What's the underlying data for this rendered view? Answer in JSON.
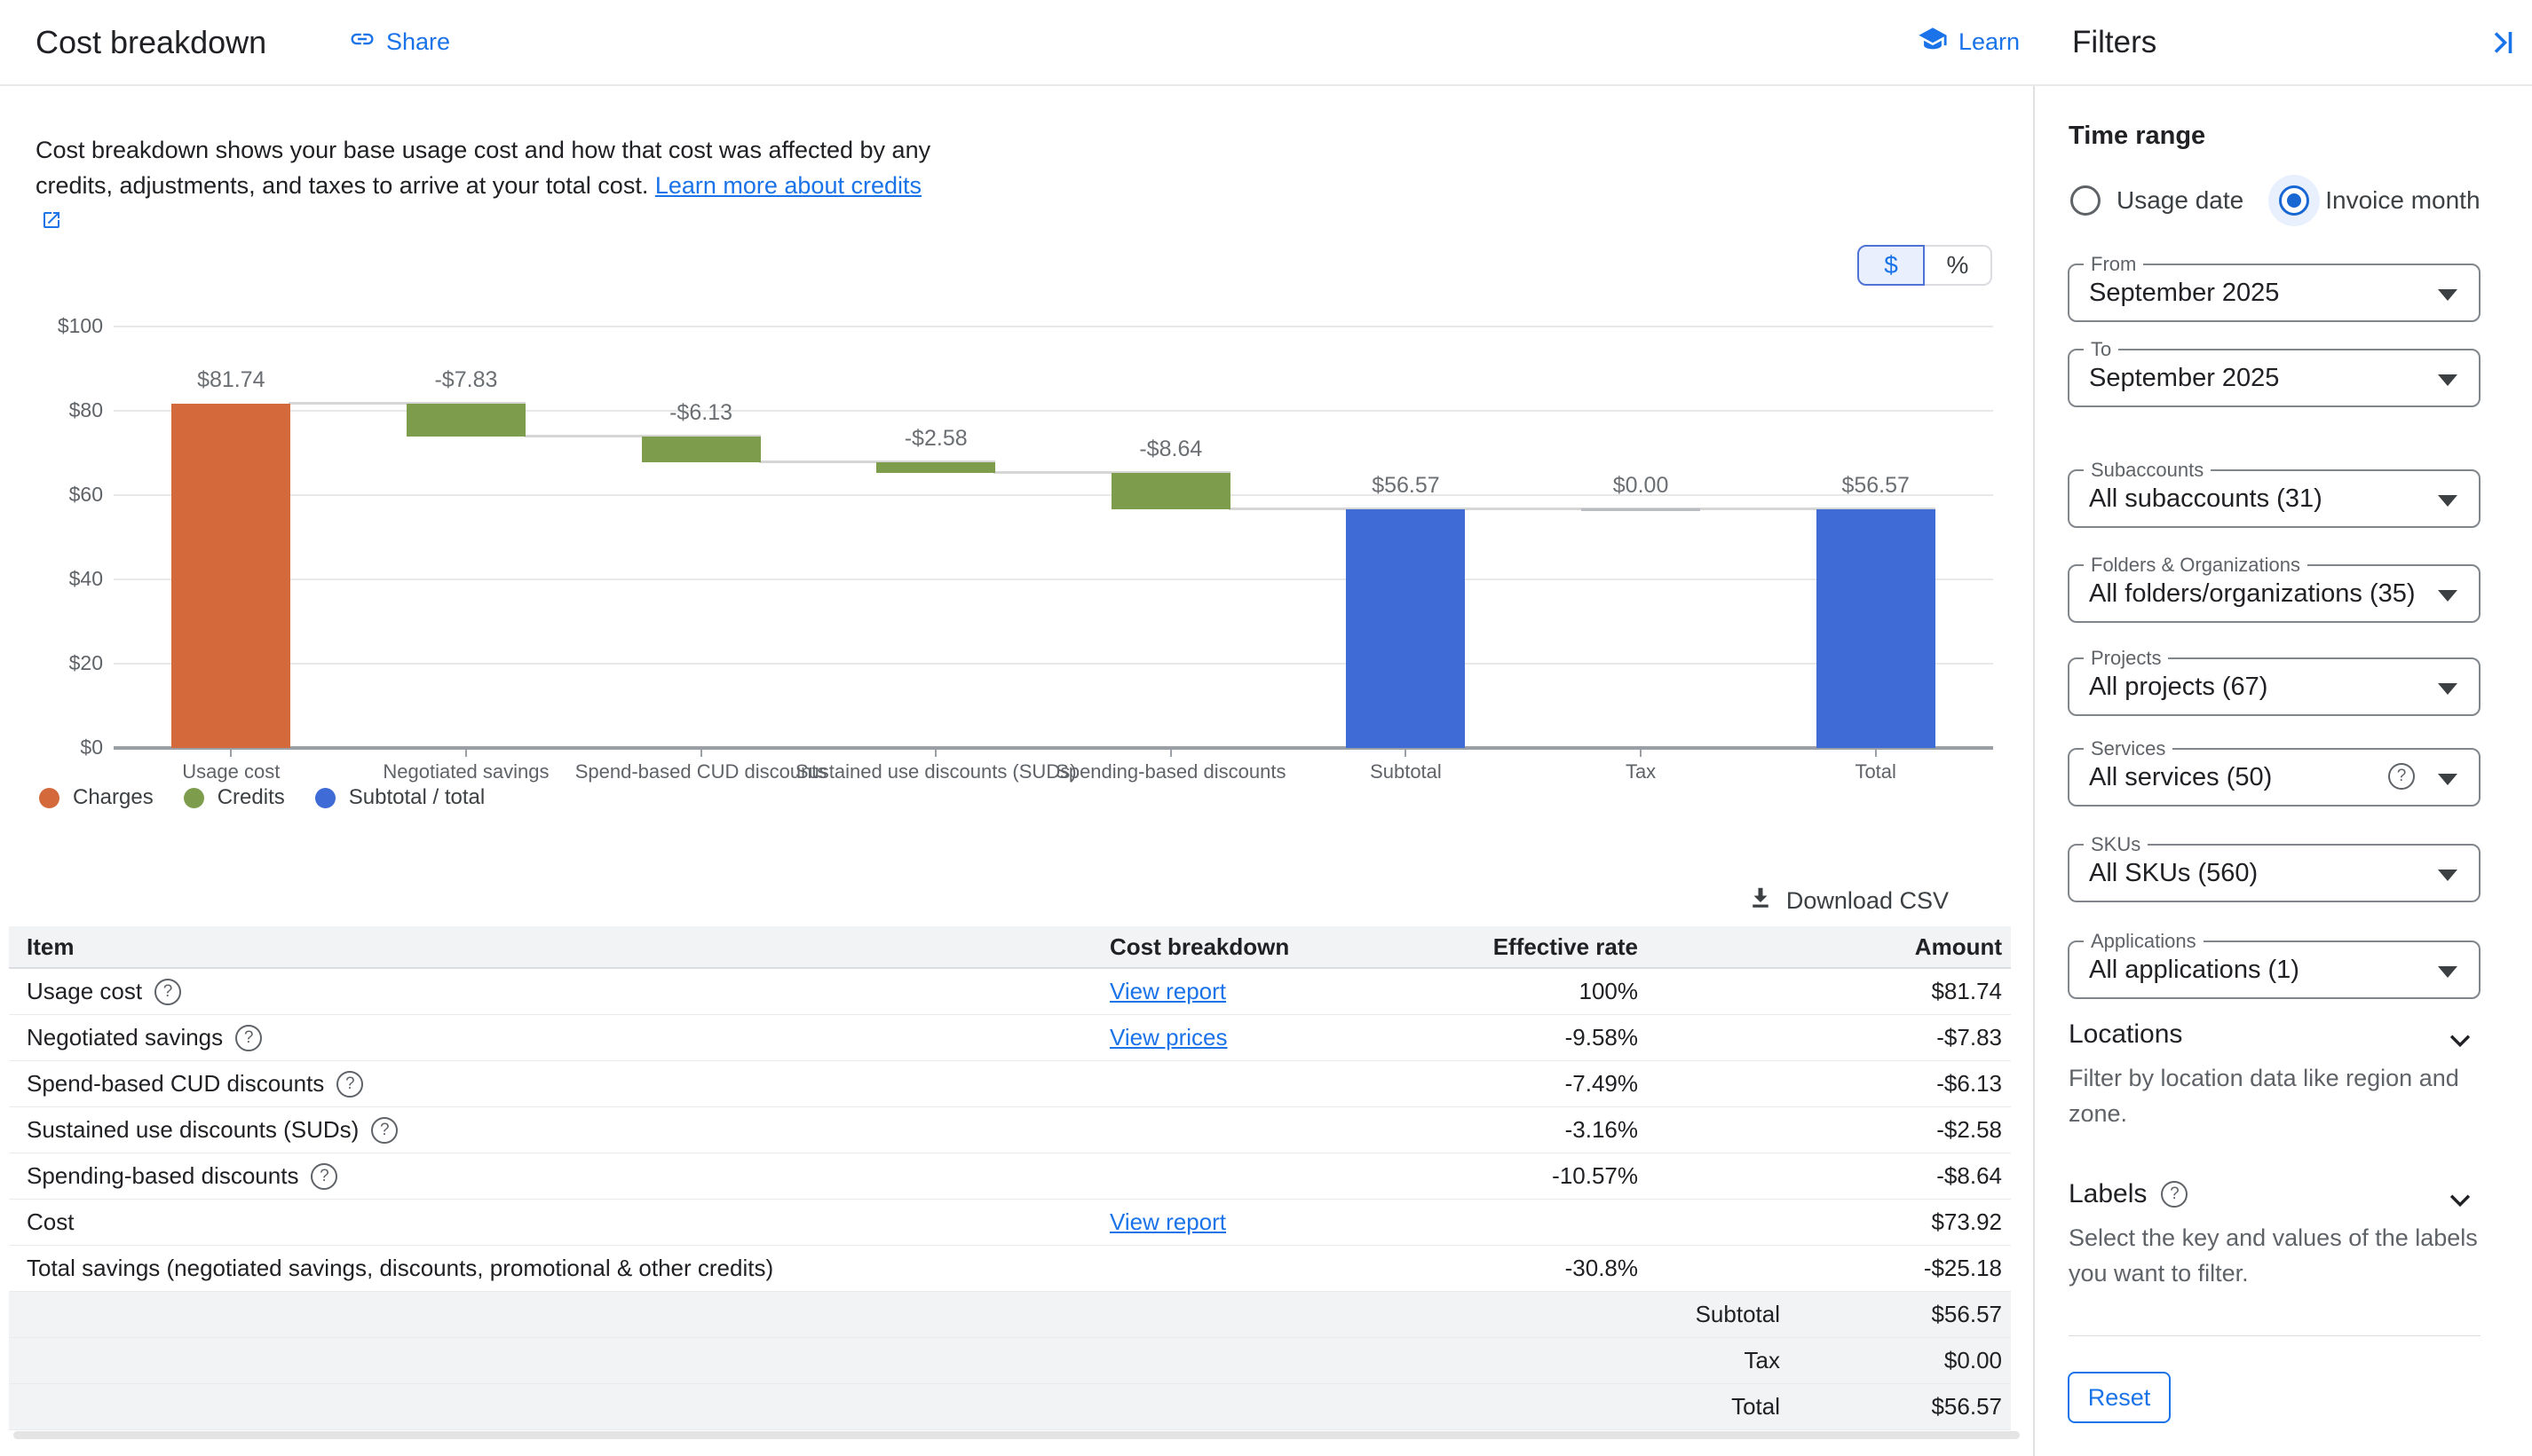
{
  "header": {
    "title": "Cost breakdown",
    "share_label": "Share",
    "learn_label": "Learn",
    "filters_title": "Filters"
  },
  "description": {
    "text": "Cost breakdown shows your base usage cost and how that cost was affected by any credits, adjustments, and taxes to arrive at your total cost. ",
    "link_text": "Learn more about credits"
  },
  "unit_toggle": {
    "dollar": "$",
    "percent": "%",
    "selected": "dollar"
  },
  "chart_data": {
    "type": "bar",
    "subtype": "waterfall",
    "title": "",
    "categories": [
      "Usage cost",
      "Negotiated savings",
      "Spend-based CUD discounts",
      "Sustained use discounts (SUDs)",
      "Spending-based discounts",
      "Subtotal",
      "Tax",
      "Total"
    ],
    "bars": [
      {
        "category": "Usage cost",
        "label": "$81.74",
        "start": 0,
        "end": 81.74,
        "series": "charges"
      },
      {
        "category": "Negotiated savings",
        "label": "-$7.83",
        "start": 81.74,
        "end": 73.91,
        "series": "credits"
      },
      {
        "category": "Spend-based CUD discounts",
        "label": "-$6.13",
        "start": 73.91,
        "end": 67.78,
        "series": "credits"
      },
      {
        "category": "Sustained use discounts (SUDs)",
        "label": "-$2.58",
        "start": 67.78,
        "end": 65.2,
        "series": "credits"
      },
      {
        "category": "Spending-based discounts",
        "label": "-$8.64",
        "start": 65.2,
        "end": 56.57,
        "series": "credits"
      },
      {
        "category": "Subtotal",
        "label": "$56.57",
        "start": 0,
        "end": 56.57,
        "series": "total"
      },
      {
        "category": "Tax",
        "label": "$0.00",
        "start": 56.57,
        "end": 56.57,
        "series": "tax"
      },
      {
        "category": "Total",
        "label": "$56.57",
        "start": 0,
        "end": 56.57,
        "series": "total"
      }
    ],
    "series_colors": {
      "charges": "#d4693c",
      "credits": "#7d9d4c",
      "total": "#3e6bd6",
      "tax": "#b9bdc2"
    },
    "legend": [
      {
        "name": "Charges",
        "color": "#d4693c"
      },
      {
        "name": "Credits",
        "color": "#7d9d4c"
      },
      {
        "name": "Subtotal / total",
        "color": "#3e6bd6"
      }
    ],
    "y_ticks": [
      "$0",
      "$20",
      "$40",
      "$60",
      "$80",
      "$100"
    ],
    "ylim": [
      0,
      100
    ],
    "grid": true,
    "legend_position": "bottom-left"
  },
  "download": {
    "label": "Download CSV"
  },
  "table": {
    "headers": [
      "Item",
      "Cost breakdown",
      "Effective rate",
      "Amount"
    ],
    "rows": [
      {
        "item": "Usage cost",
        "help": true,
        "link": "View report",
        "rate": "100%",
        "amount": "$81.74"
      },
      {
        "item": "Negotiated savings",
        "help": true,
        "link": "View prices",
        "rate": "-9.58%",
        "amount": "-$7.83"
      },
      {
        "item": "Spend-based CUD discounts",
        "help": true,
        "rate": "-7.49%",
        "amount": "-$6.13"
      },
      {
        "item": "Sustained use discounts (SUDs)",
        "help": true,
        "rate": "-3.16%",
        "amount": "-$2.58"
      },
      {
        "item": "Spending-based discounts",
        "help": true,
        "rate": "-10.57%",
        "amount": "-$8.64"
      },
      {
        "item": "Cost",
        "link": "View report",
        "amount": "$73.92"
      },
      {
        "item": "Total savings (negotiated savings, discounts, promotional & other credits)",
        "rate": "-30.8%",
        "amount": "-$25.18"
      },
      {
        "sublabel": "Subtotal",
        "amount": "$56.57",
        "shaded": true
      },
      {
        "sublabel": "Tax",
        "amount": "$0.00",
        "shaded": true
      },
      {
        "sublabel": "Total",
        "amount": "$56.57",
        "shaded": true
      }
    ]
  },
  "filters": {
    "time_range": {
      "heading": "Time range",
      "options": [
        {
          "label": "Usage date",
          "selected": false
        },
        {
          "label": "Invoice month",
          "selected": true
        }
      ]
    },
    "fields": [
      {
        "label": "From",
        "value": "September 2025"
      },
      {
        "label": "To",
        "value": "September 2025"
      },
      {
        "label": "Subaccounts",
        "value": "All subaccounts (31)"
      },
      {
        "label": "Folders & Organizations",
        "value": "All folders/organizations (35)"
      },
      {
        "label": "Projects",
        "value": "All projects (67)"
      },
      {
        "label": "Services",
        "value": "All services (50)",
        "help": true
      },
      {
        "label": "SKUs",
        "value": "All SKUs (560)"
      },
      {
        "label": "Applications",
        "value": "All applications (1)"
      }
    ],
    "sections": [
      {
        "title": "Locations",
        "desc": "Filter by location data like region and zone.",
        "help": false
      },
      {
        "title": "Labels",
        "desc": "Select the key and values of the labels you want to filter.",
        "help": true
      }
    ],
    "reset_label": "Reset"
  }
}
